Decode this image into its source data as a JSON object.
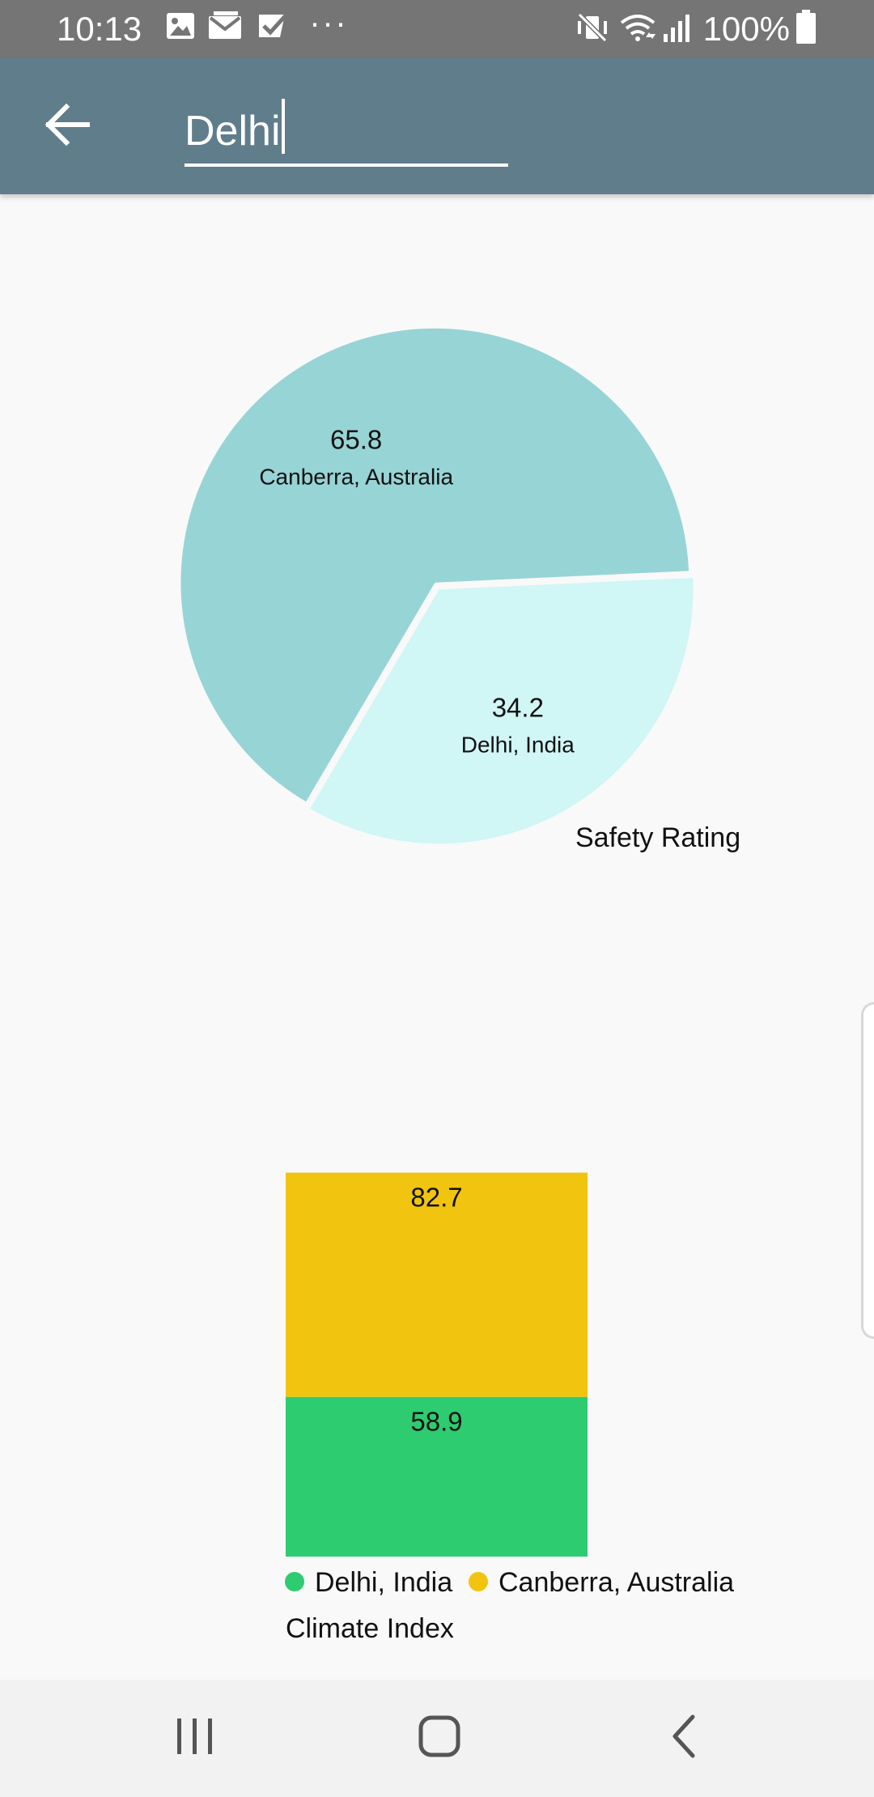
{
  "status_bar": {
    "time": "10:13",
    "more_indicator": "···",
    "battery": "100%",
    "icons": [
      "image-icon",
      "gmail-icon",
      "task-check-icon",
      "vibrate-icon",
      "wifi-icon",
      "signal-icon",
      "battery-icon"
    ]
  },
  "app_bar": {
    "back_icon": "arrow-back-icon",
    "search_value": "Delhi",
    "background": "#607d8b"
  },
  "navigation": {
    "recents_icon": "recents-icon",
    "home_icon": "home-icon",
    "back_icon": "back-chevron-icon"
  },
  "chart_data": [
    {
      "type": "pie",
      "title": "Safety Rating",
      "slices": [
        {
          "label": "Canberra, Australia",
          "value": 65.8,
          "color": "#97d4d6"
        },
        {
          "label": "Delhi, India",
          "value": 34.2,
          "color": "#d0f6f5"
        }
      ]
    },
    {
      "type": "bar",
      "stacked": true,
      "title": "Climate Index",
      "categories": [
        ""
      ],
      "series": [
        {
          "name": "Delhi, India",
          "values": [
            58.9
          ],
          "color": "#2ecc71"
        },
        {
          "name": "Canberra, Australia",
          "values": [
            82.7
          ],
          "color": "#f1c40f"
        }
      ],
      "legend_position": "bottom-left"
    }
  ]
}
